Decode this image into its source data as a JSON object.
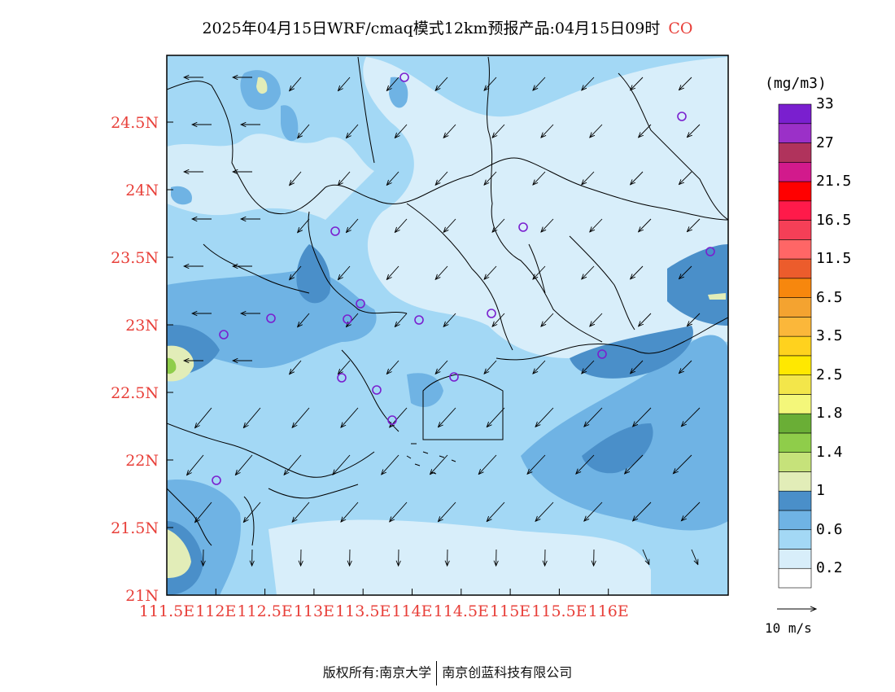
{
  "title": {
    "main": "2025年04月15日WRF/cmaq模式12km预报产品:04月15日09时",
    "species": "CO"
  },
  "axes": {
    "lon_ticks": [
      "111.5E",
      "112E",
      "112.5E",
      "113E",
      "113.5E",
      "114E",
      "114.5E",
      "115E",
      "115.5E",
      "116E"
    ],
    "lat_ticks": [
      "21N",
      "21.5N",
      "22N",
      "22.5N",
      "23N",
      "23.5N",
      "24N",
      "24.5N"
    ],
    "tick_color": "#e8403a"
  },
  "legend": {
    "unit": "(mg/m3)",
    "labels": [
      "0.2",
      "0.6",
      "1",
      "1.4",
      "1.8",
      "2.5",
      "3.5",
      "6.5",
      "11.5",
      "16.5",
      "21.5",
      "27",
      "33"
    ],
    "colors": [
      "#ffffff",
      "#d8eefa",
      "#a3d8f5",
      "#6fb3e4",
      "#4a8fc9",
      "#e2edb8",
      "#c6e27a",
      "#8fcd4a",
      "#6aae36",
      "#f4f77a",
      "#f3e64a",
      "#ffe800",
      "#ffd21e",
      "#fbb73a",
      "#f4a330",
      "#f7870d",
      "#ec5c2c",
      "#ff6666",
      "#f53f57",
      "#ff1a4a",
      "#ff0000",
      "#d21a8c",
      "#b0335c",
      "#9b30c8",
      "#7a1fcf"
    ]
  },
  "wind_reference": {
    "label": "10 m/s"
  },
  "footer": {
    "left": "版权所有:南京大学",
    "right": "南京创蓝科技有限公司"
  },
  "station_marker_color": "#7a1fcf"
}
